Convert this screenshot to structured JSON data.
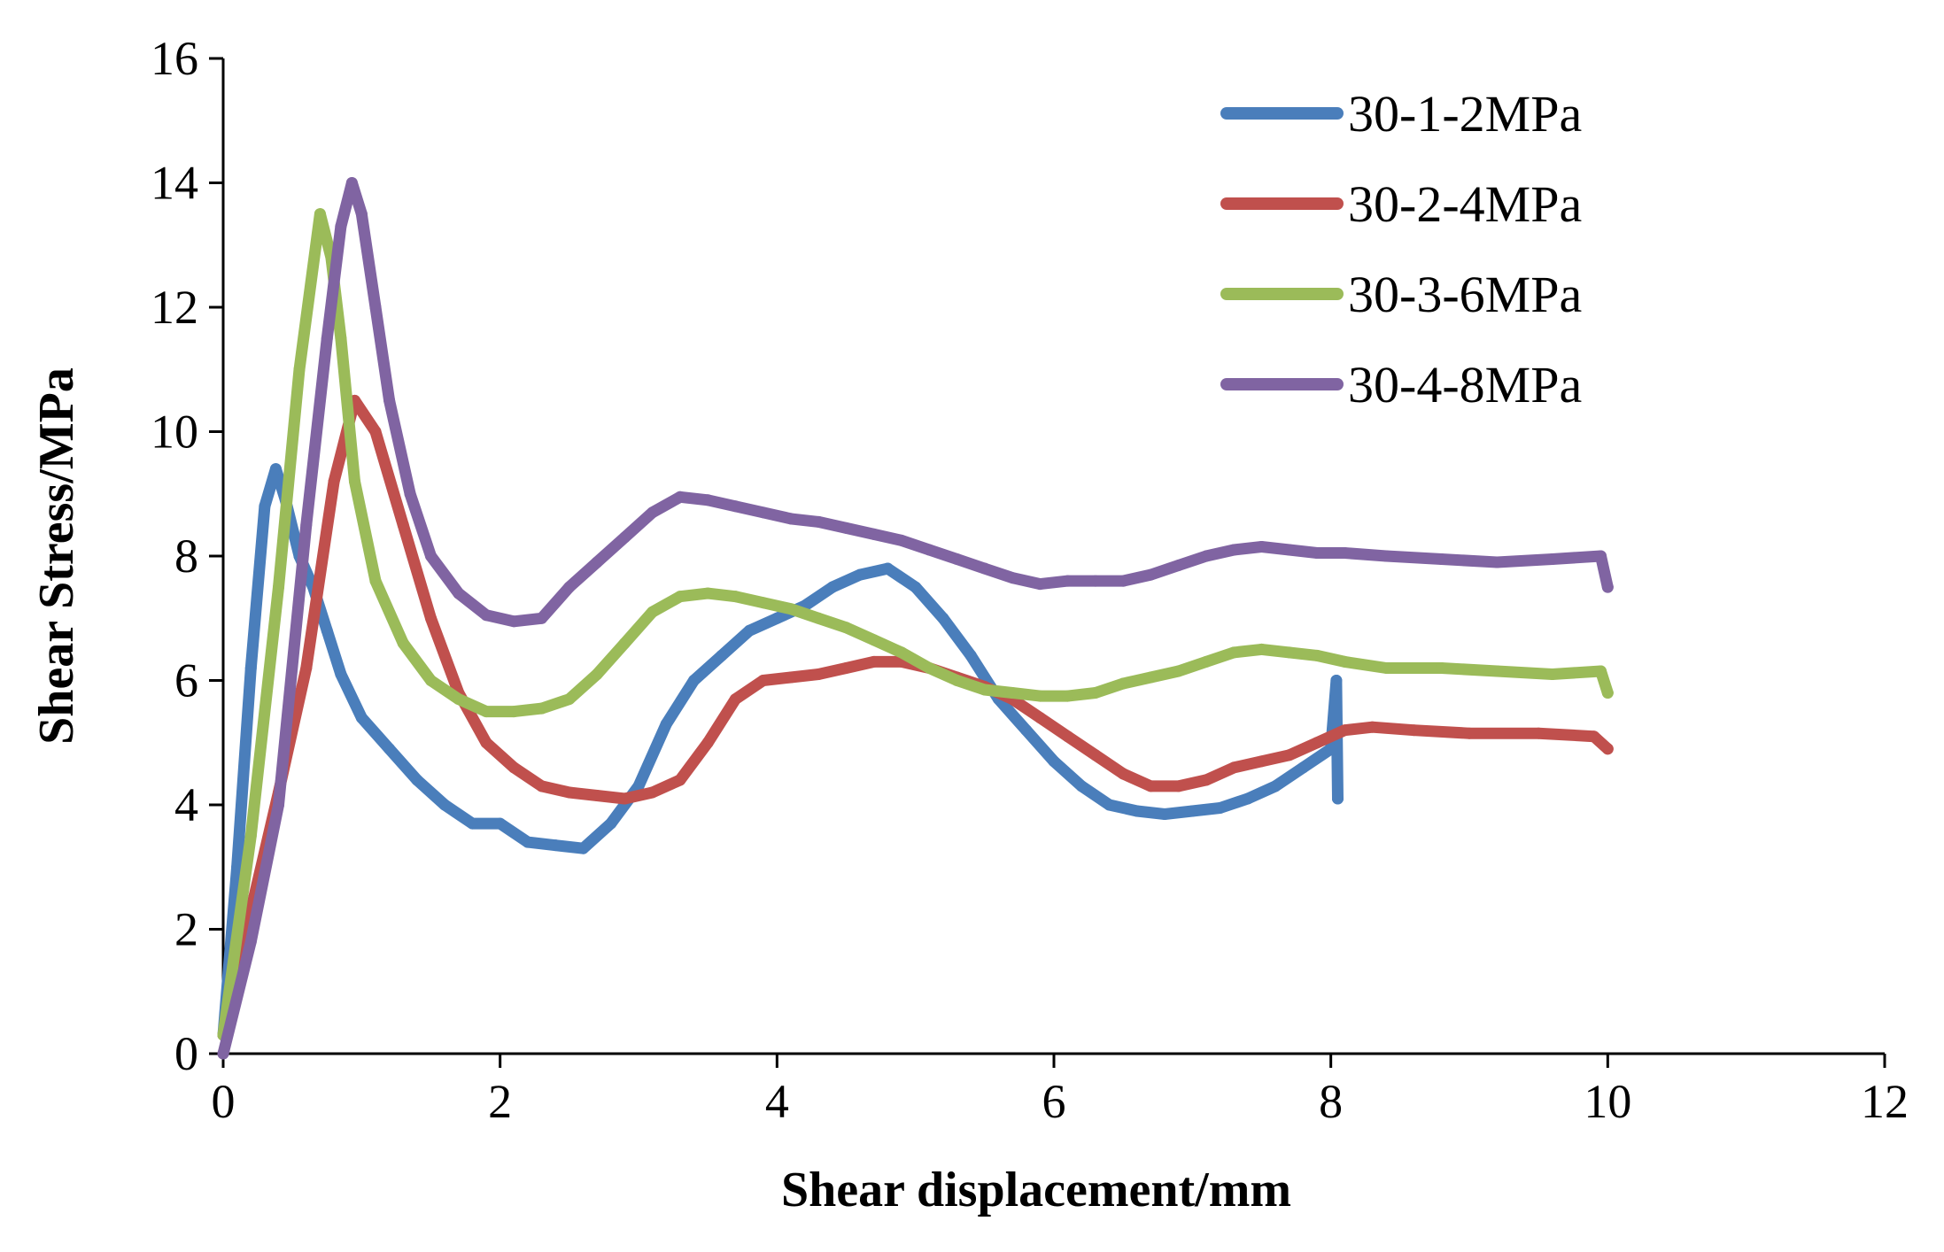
{
  "chart_data": {
    "type": "line",
    "title": "",
    "xlabel": "Shear displacement/mm",
    "ylabel": "Shear Stress/MPa",
    "xlim": [
      0,
      12
    ],
    "ylim": [
      0,
      16
    ],
    "xticks": [
      "0",
      "2",
      "4",
      "6",
      "8",
      "10",
      "12"
    ],
    "yticks": [
      "0",
      "2",
      "4",
      "6",
      "8",
      "10",
      "12",
      "14",
      "16"
    ],
    "grid": false,
    "legend_position": "top-right",
    "series": [
      {
        "name": "30-1-2MPa",
        "color": "#4a7ebb",
        "x": [
          0,
          0.1,
          0.2,
          0.3,
          0.38,
          0.45,
          0.55,
          0.65,
          0.75,
          0.85,
          1.0,
          1.2,
          1.4,
          1.6,
          1.8,
          2.0,
          2.2,
          2.4,
          2.6,
          2.8,
          3.0,
          3.2,
          3.4,
          3.6,
          3.8,
          4.0,
          4.2,
          4.4,
          4.6,
          4.8,
          5.0,
          5.2,
          5.4,
          5.6,
          5.8,
          6.0,
          6.2,
          6.4,
          6.6,
          6.8,
          7.0,
          7.2,
          7.4,
          7.6,
          7.8,
          8.0,
          8.04,
          8.05
        ],
        "values": [
          0.3,
          3.0,
          6.2,
          8.8,
          9.4,
          8.9,
          8.0,
          7.5,
          6.8,
          6.1,
          5.4,
          4.9,
          4.4,
          4.0,
          3.7,
          3.7,
          3.4,
          3.35,
          3.3,
          3.7,
          4.3,
          5.3,
          6.0,
          6.4,
          6.8,
          7.0,
          7.2,
          7.5,
          7.7,
          7.8,
          7.5,
          7.0,
          6.4,
          5.7,
          5.2,
          4.7,
          4.3,
          4.0,
          3.9,
          3.85,
          3.9,
          3.95,
          4.1,
          4.3,
          4.6,
          4.9,
          6.0,
          4.1
        ]
      },
      {
        "name": "30-2-4MPa",
        "color": "#c0504d",
        "x": [
          0,
          0.2,
          0.4,
          0.6,
          0.8,
          0.95,
          1.1,
          1.3,
          1.5,
          1.7,
          1.9,
          2.1,
          2.3,
          2.5,
          2.7,
          2.9,
          3.1,
          3.3,
          3.5,
          3.7,
          3.9,
          4.1,
          4.3,
          4.5,
          4.7,
          4.9,
          5.1,
          5.3,
          5.5,
          5.7,
          5.9,
          6.1,
          6.3,
          6.5,
          6.7,
          6.9,
          7.1,
          7.3,
          7.5,
          7.7,
          7.9,
          8.1,
          8.3,
          8.6,
          9.0,
          9.5,
          9.9,
          10.0
        ],
        "values": [
          0.3,
          2.3,
          4.2,
          6.2,
          9.2,
          10.5,
          10.0,
          8.5,
          7.0,
          5.8,
          5.0,
          4.6,
          4.3,
          4.2,
          4.15,
          4.1,
          4.2,
          4.4,
          5.0,
          5.7,
          6.0,
          6.05,
          6.1,
          6.2,
          6.3,
          6.3,
          6.2,
          6.05,
          5.9,
          5.7,
          5.4,
          5.1,
          4.8,
          4.5,
          4.3,
          4.3,
          4.4,
          4.6,
          4.7,
          4.8,
          5.0,
          5.2,
          5.25,
          5.2,
          5.15,
          5.15,
          5.1,
          4.9
        ]
      },
      {
        "name": "30-3-6MPa",
        "color": "#9bbb59",
        "x": [
          0,
          0.2,
          0.4,
          0.55,
          0.7,
          0.78,
          0.85,
          0.95,
          1.1,
          1.3,
          1.5,
          1.7,
          1.9,
          2.1,
          2.3,
          2.5,
          2.7,
          2.9,
          3.1,
          3.3,
          3.5,
          3.7,
          3.9,
          4.1,
          4.3,
          4.5,
          4.7,
          4.9,
          5.1,
          5.3,
          5.5,
          5.7,
          5.9,
          6.1,
          6.3,
          6.5,
          6.7,
          6.9,
          7.1,
          7.3,
          7.5,
          7.7,
          7.9,
          8.1,
          8.4,
          8.8,
          9.2,
          9.6,
          9.95,
          10.0
        ],
        "values": [
          0.3,
          3.5,
          7.5,
          11.0,
          13.5,
          12.8,
          11.5,
          9.2,
          7.6,
          6.6,
          6.0,
          5.7,
          5.5,
          5.5,
          5.55,
          5.7,
          6.1,
          6.6,
          7.1,
          7.35,
          7.4,
          7.35,
          7.25,
          7.15,
          7.0,
          6.85,
          6.65,
          6.45,
          6.2,
          6.0,
          5.85,
          5.8,
          5.75,
          5.75,
          5.8,
          5.95,
          6.05,
          6.15,
          6.3,
          6.45,
          6.5,
          6.45,
          6.4,
          6.3,
          6.2,
          6.2,
          6.15,
          6.1,
          6.15,
          5.8
        ]
      },
      {
        "name": "30-4-8MPa",
        "color": "#8064a2",
        "x": [
          0,
          0.2,
          0.4,
          0.6,
          0.75,
          0.85,
          0.93,
          1.0,
          1.1,
          1.2,
          1.35,
          1.5,
          1.7,
          1.9,
          2.1,
          2.3,
          2.5,
          2.7,
          2.9,
          3.1,
          3.3,
          3.5,
          3.7,
          3.9,
          4.1,
          4.3,
          4.5,
          4.7,
          4.9,
          5.1,
          5.3,
          5.5,
          5.7,
          5.9,
          6.1,
          6.3,
          6.5,
          6.7,
          6.9,
          7.1,
          7.3,
          7.5,
          7.7,
          7.9,
          8.1,
          8.4,
          8.8,
          9.2,
          9.6,
          9.95,
          10.0
        ],
        "values": [
          0.0,
          1.8,
          4.0,
          8.5,
          11.5,
          13.3,
          14.0,
          13.5,
          12.0,
          10.5,
          9.0,
          8.0,
          7.4,
          7.05,
          6.95,
          7.0,
          7.5,
          7.9,
          8.3,
          8.7,
          8.95,
          8.9,
          8.8,
          8.7,
          8.6,
          8.55,
          8.45,
          8.35,
          8.25,
          8.1,
          7.95,
          7.8,
          7.65,
          7.55,
          7.6,
          7.6,
          7.6,
          7.7,
          7.85,
          8.0,
          8.1,
          8.15,
          8.1,
          8.05,
          8.05,
          8.0,
          7.95,
          7.9,
          7.95,
          8.0,
          7.5
        ]
      }
    ]
  }
}
